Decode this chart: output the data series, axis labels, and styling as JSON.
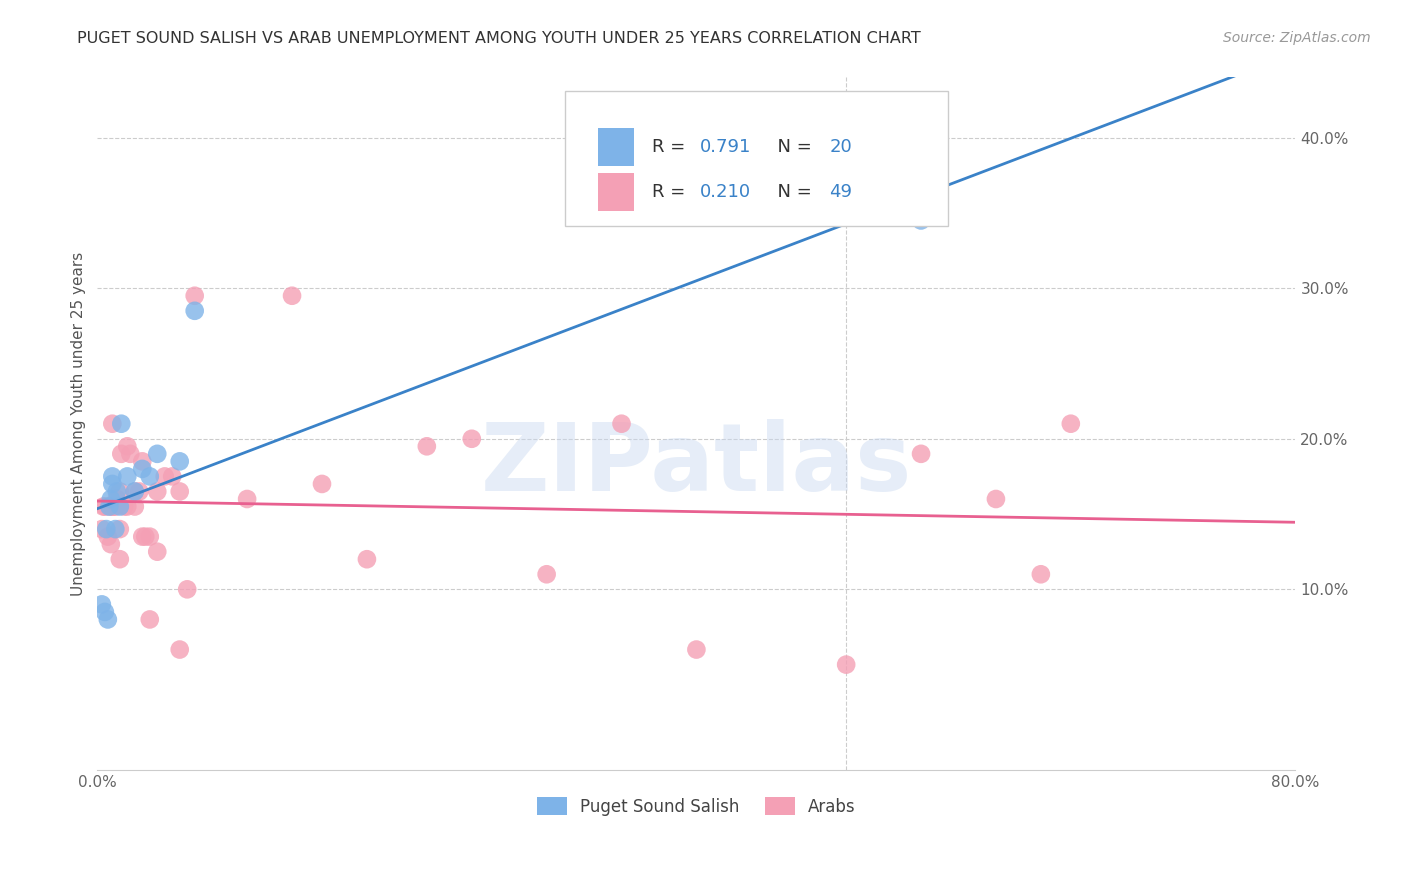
{
  "title": "PUGET SOUND SALISH VS ARAB UNEMPLOYMENT AMONG YOUTH UNDER 25 YEARS CORRELATION CHART",
  "source": "Source: ZipAtlas.com",
  "ylabel": "Unemployment Among Youth under 25 years",
  "xlim": [
    0.0,
    0.8
  ],
  "ylim": [
    -0.02,
    0.44
  ],
  "salish_R": 0.791,
  "salish_N": 20,
  "arab_R": 0.21,
  "arab_N": 49,
  "legend_label1": "Puget Sound Salish",
  "legend_label2": "Arabs",
  "salish_color": "#7EB3E8",
  "arab_color": "#F4A0B5",
  "salish_line_color": "#3A82C8",
  "arab_line_color": "#E86090",
  "watermark": "ZIPatlas",
  "salish_x": [
    0.003,
    0.005,
    0.006,
    0.007,
    0.008,
    0.009,
    0.01,
    0.01,
    0.012,
    0.013,
    0.015,
    0.016,
    0.02,
    0.025,
    0.03,
    0.035,
    0.04,
    0.055,
    0.065,
    0.55
  ],
  "salish_y": [
    0.09,
    0.085,
    0.14,
    0.08,
    0.155,
    0.16,
    0.175,
    0.17,
    0.14,
    0.165,
    0.155,
    0.21,
    0.175,
    0.165,
    0.18,
    0.175,
    0.19,
    0.185,
    0.285,
    0.345
  ],
  "arab_x": [
    0.003,
    0.004,
    0.005,
    0.007,
    0.008,
    0.009,
    0.01,
    0.01,
    0.011,
    0.012,
    0.013,
    0.015,
    0.015,
    0.015,
    0.016,
    0.018,
    0.02,
    0.02,
    0.022,
    0.025,
    0.025,
    0.028,
    0.03,
    0.03,
    0.032,
    0.035,
    0.035,
    0.04,
    0.04,
    0.045,
    0.05,
    0.055,
    0.055,
    0.06,
    0.065,
    0.1,
    0.13,
    0.15,
    0.18,
    0.22,
    0.25,
    0.3,
    0.35,
    0.4,
    0.5,
    0.55,
    0.6,
    0.63,
    0.65
  ],
  "arab_y": [
    0.14,
    0.155,
    0.155,
    0.135,
    0.155,
    0.13,
    0.155,
    0.21,
    0.155,
    0.155,
    0.16,
    0.14,
    0.165,
    0.12,
    0.19,
    0.155,
    0.195,
    0.155,
    0.19,
    0.165,
    0.155,
    0.165,
    0.185,
    0.135,
    0.135,
    0.08,
    0.135,
    0.165,
    0.125,
    0.175,
    0.175,
    0.06,
    0.165,
    0.1,
    0.295,
    0.16,
    0.295,
    0.17,
    0.12,
    0.195,
    0.2,
    0.11,
    0.21,
    0.06,
    0.05,
    0.19,
    0.16,
    0.11,
    0.21
  ]
}
